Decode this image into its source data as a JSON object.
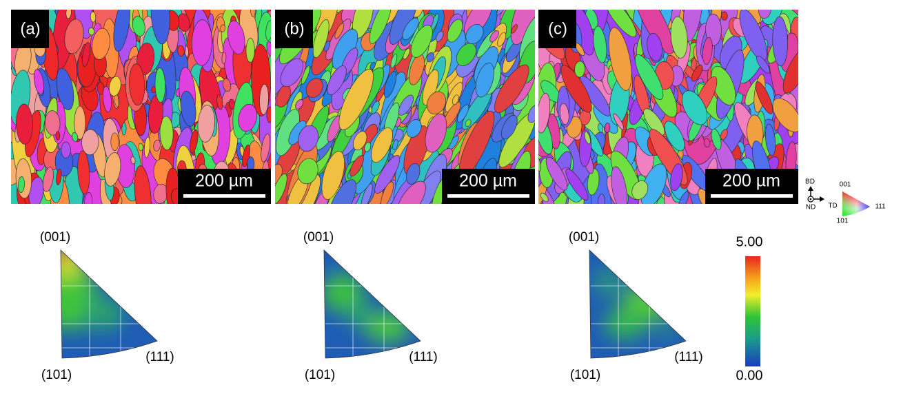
{
  "panels": [
    {
      "label": "(a)",
      "scale_bar": "200 µm",
      "ipf": {
        "top": "(001)",
        "left": "(101)",
        "right": "(111)"
      }
    },
    {
      "label": "(b)",
      "scale_bar": "200 µm",
      "ipf": {
        "top": "(001)",
        "left": "(101)",
        "right": "(111)"
      }
    },
    {
      "label": "(c)",
      "scale_bar": "200 µm",
      "ipf": {
        "top": "(001)",
        "left": "(101)",
        "right": "(111)"
      }
    }
  ],
  "legend": {
    "axes": {
      "up": "BD",
      "out": "ND",
      "right": "TD"
    },
    "triangle": {
      "top": "001",
      "left": "101",
      "right": "111"
    }
  },
  "colorbar": {
    "max": "5.00",
    "min": "0.00"
  }
}
